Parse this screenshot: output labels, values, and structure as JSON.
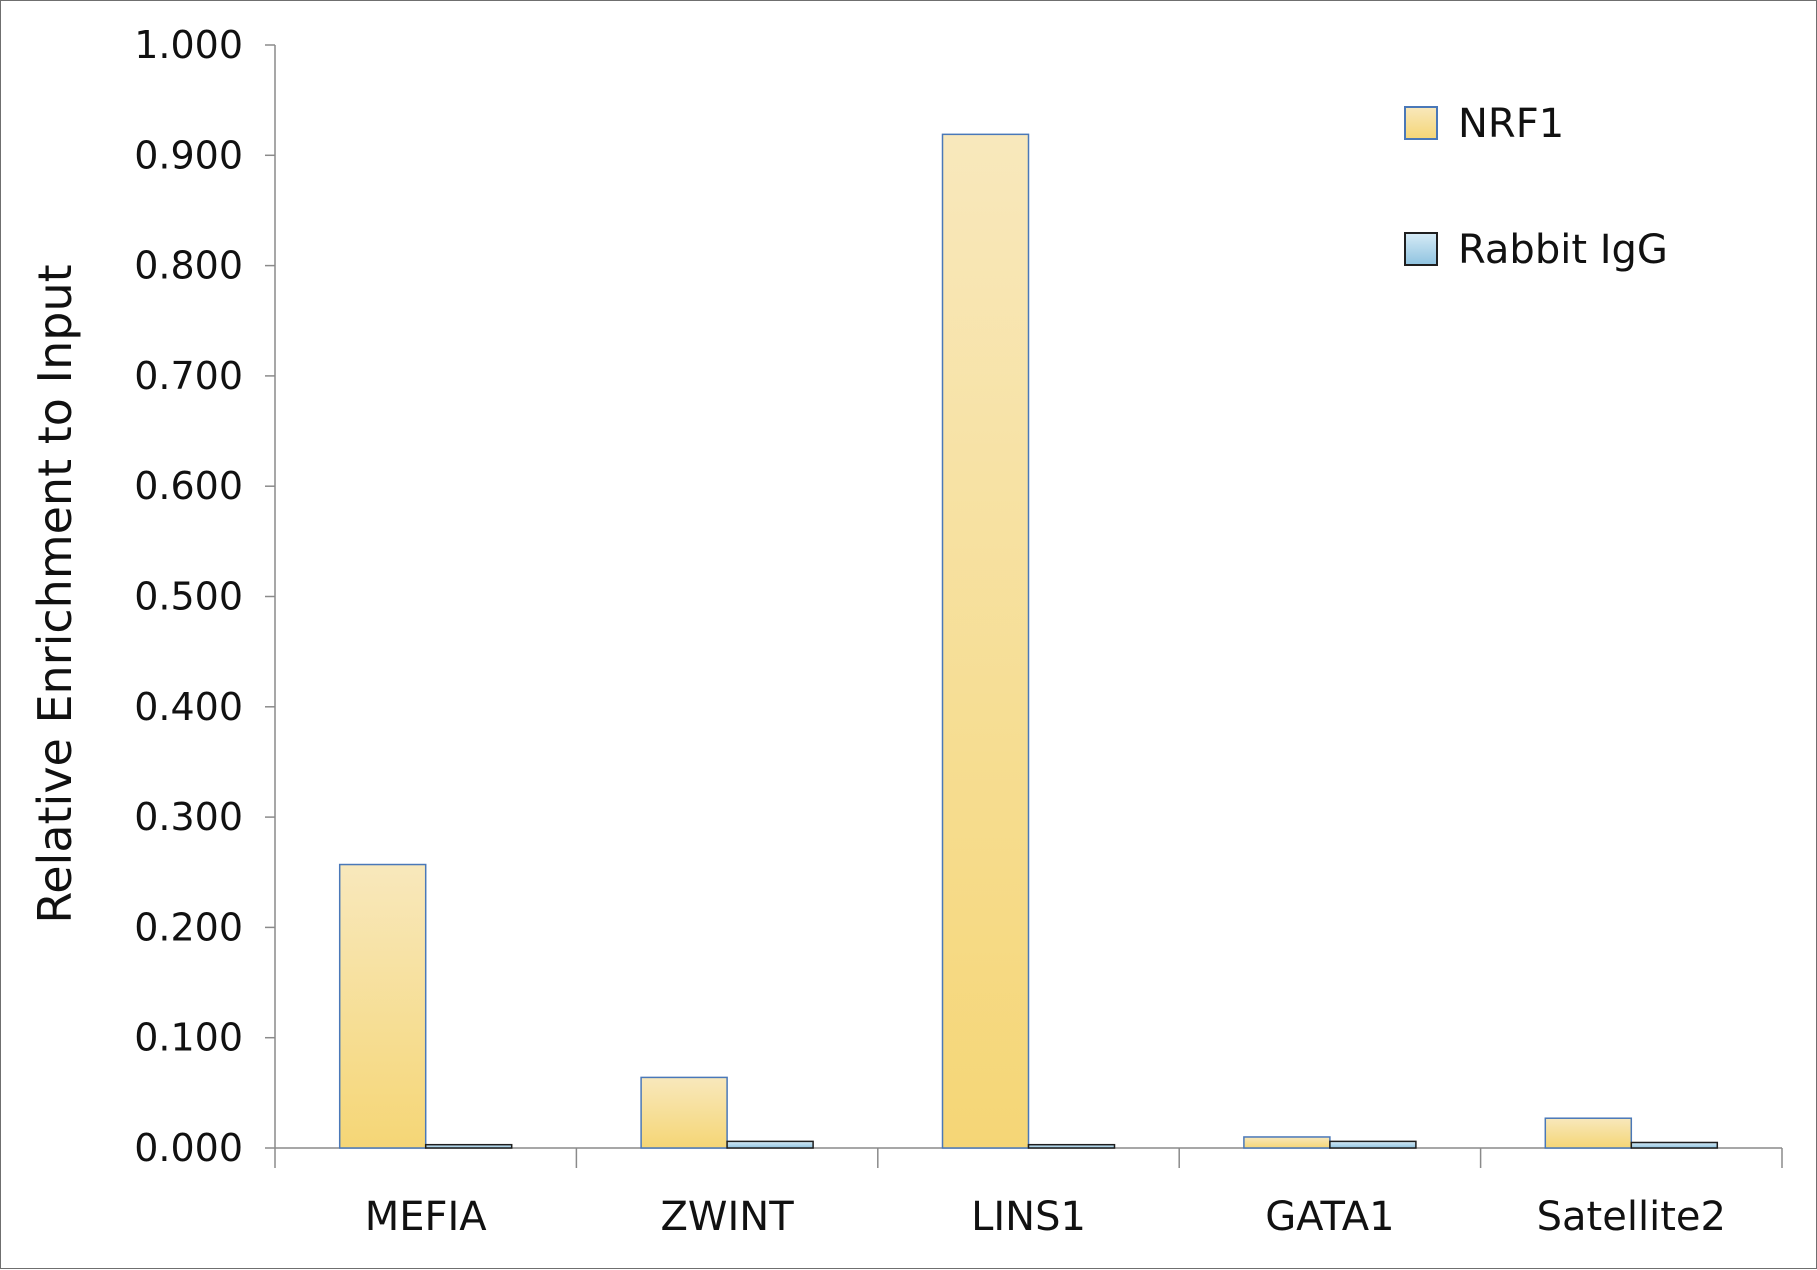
{
  "chart_data": {
    "type": "bar",
    "title": "",
    "xlabel": "",
    "ylabel": "Relative Enrichment to Input",
    "ylim": [
      0,
      1.0
    ],
    "yticks": [
      "0.000",
      "0.100",
      "0.200",
      "0.300",
      "0.400",
      "0.500",
      "0.600",
      "0.700",
      "0.800",
      "0.900",
      "1.000"
    ],
    "categories": [
      "MEFIA",
      "ZWINT",
      "LINS1",
      "GATA1",
      "Satellite2"
    ],
    "series": [
      {
        "name": "NRF1",
        "values": [
          0.257,
          0.064,
          0.919,
          0.01,
          0.027
        ],
        "color_top": "#f8e8bc",
        "color_bottom": "#f5d676",
        "stroke": "#4a78b8"
      },
      {
        "name": "Rabbit IgG",
        "values": [
          0.003,
          0.006,
          0.003,
          0.006,
          0.005
        ],
        "color_top": "#d6ebf6",
        "color_bottom": "#8fc3e0",
        "stroke": "#1f1f1f"
      }
    ],
    "grid": false,
    "legend_position": "top-right"
  }
}
